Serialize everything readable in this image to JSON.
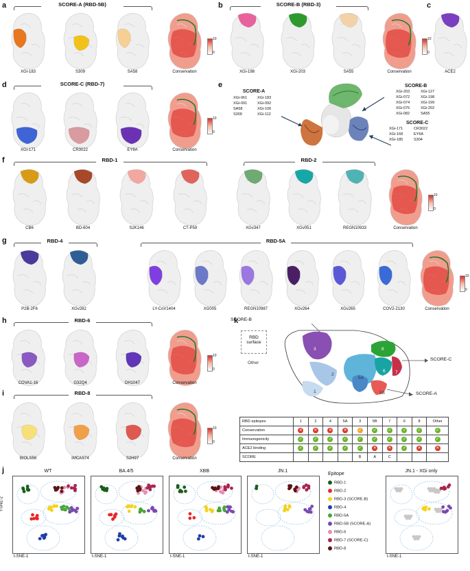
{
  "panel_letters": [
    "a",
    "b",
    "c",
    "d",
    "e",
    "f",
    "g",
    "h",
    "i",
    "j",
    "k"
  ],
  "a": {
    "title": "SCORE-A (RBD-5B)",
    "labels": [
      "XGi-183",
      "S309",
      "SA58",
      "Conservation"
    ]
  },
  "b": {
    "title": "SCORE-B (RBD-3)",
    "labels": [
      "XGi-198",
      "XGi-203",
      "SA55",
      "Conservation"
    ]
  },
  "c": {
    "labels": [
      "ACE2"
    ]
  },
  "d": {
    "title": "SCORE-C (RBD-7)",
    "labels": [
      "XGi-171",
      "CR3022",
      "EY6A",
      "Conservation"
    ]
  },
  "e": {
    "score_a": {
      "title": "SCORE-A",
      "col1": [
        "XGi-061",
        "XGi-091",
        "SA58",
        "S309"
      ],
      "col2": [
        "XGi-183",
        "XGi-092",
        "XGi-106",
        "XGi-112"
      ]
    },
    "score_b": {
      "title": "SCORE-B",
      "col1": [
        "XGi-203",
        "XGi-072",
        "XGi-074",
        "XGi-075",
        "XGi-082"
      ],
      "col2": [
        "XGi-127",
        "XGi-198",
        "XGi-199",
        "XGi-202",
        "SA55"
      ]
    },
    "score_c": {
      "title": "SCORE-C",
      "col1": [
        "XGi-171",
        "XGi-168",
        "XGi-185"
      ],
      "col2": [
        "CR3022",
        "EY6A",
        "S304"
      ]
    }
  },
  "f": {
    "title1": "RBD-1",
    "title2": "RBD-2",
    "labels": [
      "CB6",
      "BD-604",
      "S2K146",
      "CT-P59",
      "XGv347",
      "XGv051",
      "REGN10933",
      "Conservation"
    ]
  },
  "g": {
    "title1": "RBD-4",
    "title2": "RBD-5A",
    "labels": [
      "P2B-2F6",
      "XGv282",
      "LY-CoV1404",
      "XG005",
      "REGN10987",
      "XGv264",
      "XGv265",
      "COV2-2130",
      "Conservation"
    ]
  },
  "h": {
    "title": "RBD-6",
    "labels": [
      "COVA1-16",
      "G32Q4",
      "DH1047",
      "Conservation"
    ]
  },
  "i": {
    "title": "RBD-8",
    "labels": [
      "BIOLS56",
      "IMCAS74",
      "S2H97",
      "Conservation"
    ]
  },
  "colorbar": {
    "max": "10",
    "min": "0"
  },
  "k": {
    "surface_label": "RBD surface",
    "arrows": [
      "SCORE-B",
      "SCORE-C",
      "SCORE-A"
    ],
    "region_labels": [
      "Other",
      "3",
      "8",
      "2",
      "5A",
      "6",
      "7",
      "1",
      "4",
      "5B"
    ],
    "table": {
      "headers": [
        "RBD epitopes",
        "1",
        "2",
        "4",
        "5A",
        "3",
        "5B",
        "7",
        "6",
        "8",
        "Other"
      ],
      "rows": [
        {
          "name": "Conservation",
          "vals": [
            "no",
            "no",
            "no",
            "no",
            "warn",
            "ok",
            "ok",
            "ok",
            "ok",
            "ok"
          ]
        },
        {
          "name": "Immunogenicity",
          "vals": [
            "ok",
            "ok",
            "ok",
            "ok",
            "ok",
            "ok",
            "ok",
            "ok",
            "ok",
            "ok"
          ]
        },
        {
          "name": "ACE2 binding",
          "vals": [
            "ok",
            "ok",
            "ok",
            "ok",
            "ok",
            "no",
            "no",
            "ok",
            "no",
            "no"
          ]
        },
        {
          "name": "SCORE",
          "vals": [
            "",
            "",
            "",
            "",
            "B",
            "A",
            "C",
            "",
            "",
            ""
          ]
        }
      ]
    }
  },
  "j": {
    "titles": [
      "WT",
      "BA.4/5",
      "XBB",
      "JN.1",
      "JN.1 - XGi only"
    ],
    "xlabel": "t-SNE-1",
    "ylabel": "t-SNE-2",
    "legend_title": "Epitope",
    "legend": [
      {
        "name": "RBD-1",
        "color": "#1a5e1a"
      },
      {
        "name": "RBD-2",
        "color": "#e8282a"
      },
      {
        "name": "RBD-3 (SCORE-B)",
        "color": "#f5d21c"
      },
      {
        "name": "RBD-4",
        "color": "#1f3fa8"
      },
      {
        "name": "RBD-5A",
        "color": "#47a63a"
      },
      {
        "name": "RBD-5B (SCORE-A)",
        "color": "#7a48b0"
      },
      {
        "name": "RBD-6",
        "color": "#e58fb5"
      },
      {
        "name": "RBD-7 (SCORE-C)",
        "color": "#a8264e"
      },
      {
        "name": "RBD-8",
        "color": "#5c1414"
      }
    ]
  }
}
